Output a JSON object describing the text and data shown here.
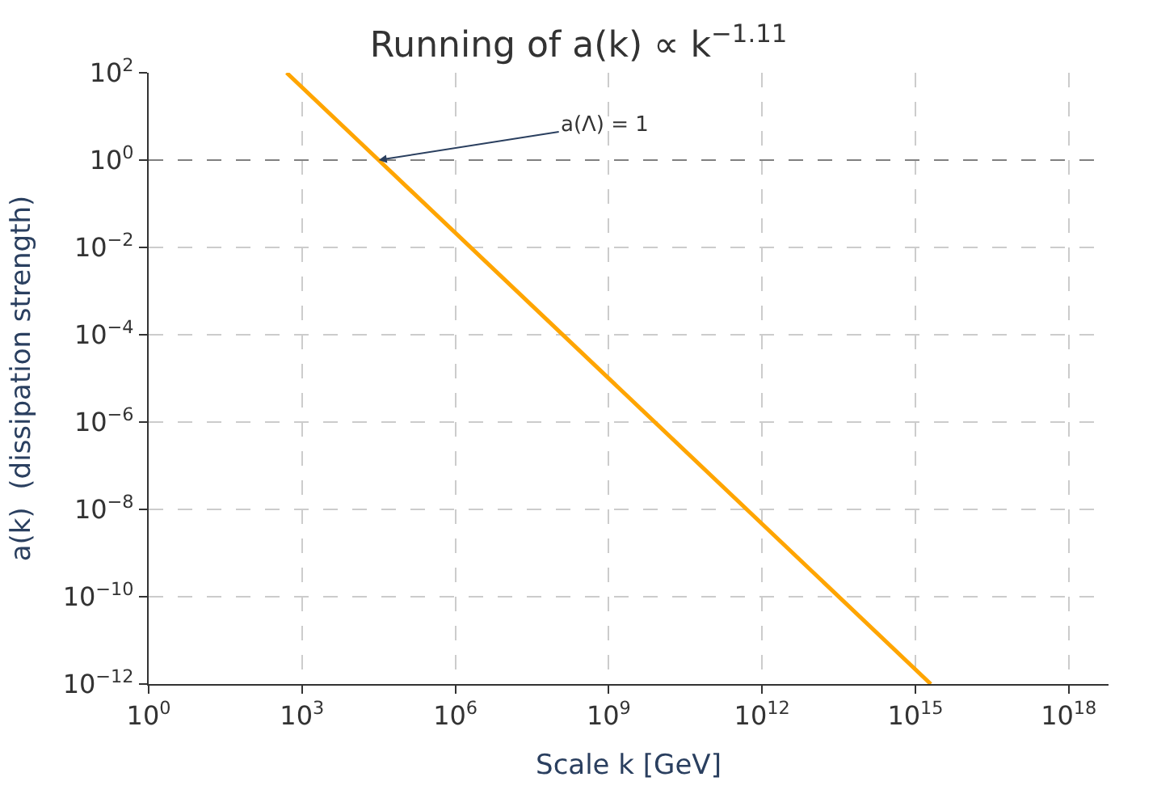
{
  "chart_data": {
    "type": "line",
    "title": "Running of a(k) ∝ k$^{−1.11}$",
    "xlabel": "Scale k [GeV]",
    "ylabel": "a(k)  (dissipation strength)",
    "log": "xy",
    "grid": true,
    "legend": false,
    "marker": "none",
    "line_style": "solid",
    "x": [
      500,
      31600,
      2000000000000000
    ],
    "series": [
      {
        "color": "#ffa500",
        "values": [
          100,
          1,
          1e-12
        ]
      }
    ],
    "xlim": [
      1,
      6e+18
    ],
    "ylim": [
      1e-12,
      100
    ],
    "xticks": [
      {
        "value": 1,
        "label": "10$^{0}$"
      },
      {
        "value": 1000,
        "label": "10$^{3}$"
      },
      {
        "value": 1000000,
        "label": "10$^{6}$"
      },
      {
        "value": 1000000000,
        "label": "10$^{9}$"
      },
      {
        "value": 1000000000000,
        "label": "10$^{12}$"
      },
      {
        "value": 1000000000000000,
        "label": "10$^{15}$"
      },
      {
        "value": 1000000000000000000,
        "label": "10$^{18}$"
      }
    ],
    "yticks": [
      {
        "value": 1e-12,
        "label": "10$^{−12}$"
      },
      {
        "value": 1e-10,
        "label": "10$^{−10}$"
      },
      {
        "value": 1e-08,
        "label": "10$^{−8}$"
      },
      {
        "value": 1e-06,
        "label": "10$^{−6}$"
      },
      {
        "value": 0.0001,
        "label": "10$^{−4}$"
      },
      {
        "value": 0.01,
        "label": "10$^{−2}$"
      },
      {
        "value": 1,
        "label": "10$^{0}$"
      },
      {
        "value": 100,
        "label": "10$^{2}$"
      }
    ],
    "ref_lines": [
      {
        "axis": "y",
        "value": 1,
        "color": "#808080",
        "line_style": "dashed"
      }
    ],
    "annotations": [
      {
        "text": "a(Λ) = 1",
        "x": 31600,
        "y": 1
      }
    ]
  }
}
